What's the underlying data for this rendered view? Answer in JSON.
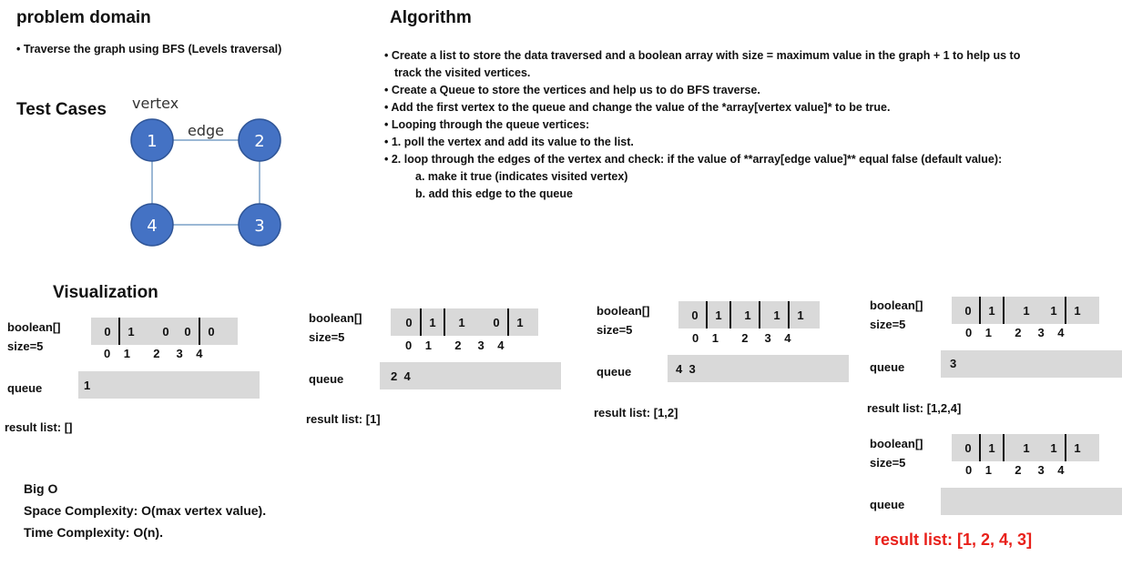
{
  "problem": {
    "title": "problem domain",
    "bullet": "Traverse the graph using BFS (Levels traversal)"
  },
  "test_cases": {
    "title": "Test Cases",
    "vertex_label": "vertex",
    "edge_label": "edge",
    "nodes": [
      "1",
      "2",
      "3",
      "4"
    ],
    "node_color": "#4472c4"
  },
  "algorithm": {
    "title": "Algorithm",
    "steps": [
      "Create a list to store the data traversed and a boolean array with size = maximum value in the graph + 1 to help us to",
      "track the visited vertices.",
      "Create a Queue to store the vertices and help us to do BFS traverse.",
      "Add the first vertex to the queue and change the value of the *array[vertex value]* to be true.",
      "Looping through the queue vertices:",
      "1. poll the vertex and add its value to the list.",
      "2. loop through the edges of the vertex and check: if the value of **array[edge value]** equal false (default value):"
    ],
    "sub_steps": [
      "a. make it true (indicates visited vertex)",
      "b. add this edge to the queue"
    ]
  },
  "visualization": {
    "title": "Visualization",
    "bool_label": "boolean[]",
    "size_label": "size=5",
    "queue_label": "queue",
    "indices": [
      "0",
      "1",
      "2",
      "3",
      "4"
    ],
    "panels": [
      {
        "values": [
          "0",
          "1",
          "0",
          "0",
          "0"
        ],
        "queue": "1",
        "result": "result list: []"
      },
      {
        "values": [
          "0",
          "1",
          "1",
          "0",
          "1"
        ],
        "queue": "2  4",
        "result": "result list: [1]"
      },
      {
        "values": [
          "0",
          "1",
          "1",
          "1",
          "1"
        ],
        "queue": "4  3",
        "result": "result list: [1,2]"
      },
      {
        "values": [
          "0",
          "1",
          "1",
          "1",
          "1"
        ],
        "queue": "3",
        "result": "result list: [1,2,4]"
      },
      {
        "values": [
          "0",
          "1",
          "1",
          "1",
          "1"
        ],
        "queue": "",
        "result": "result list: [1, 2, 4, 3]"
      }
    ],
    "final_color": "#e8201a"
  },
  "big_o": {
    "title": "Big O",
    "space": "Space Complexity: O(max vertex value).",
    "time": "Time Complexity: O(n)."
  }
}
